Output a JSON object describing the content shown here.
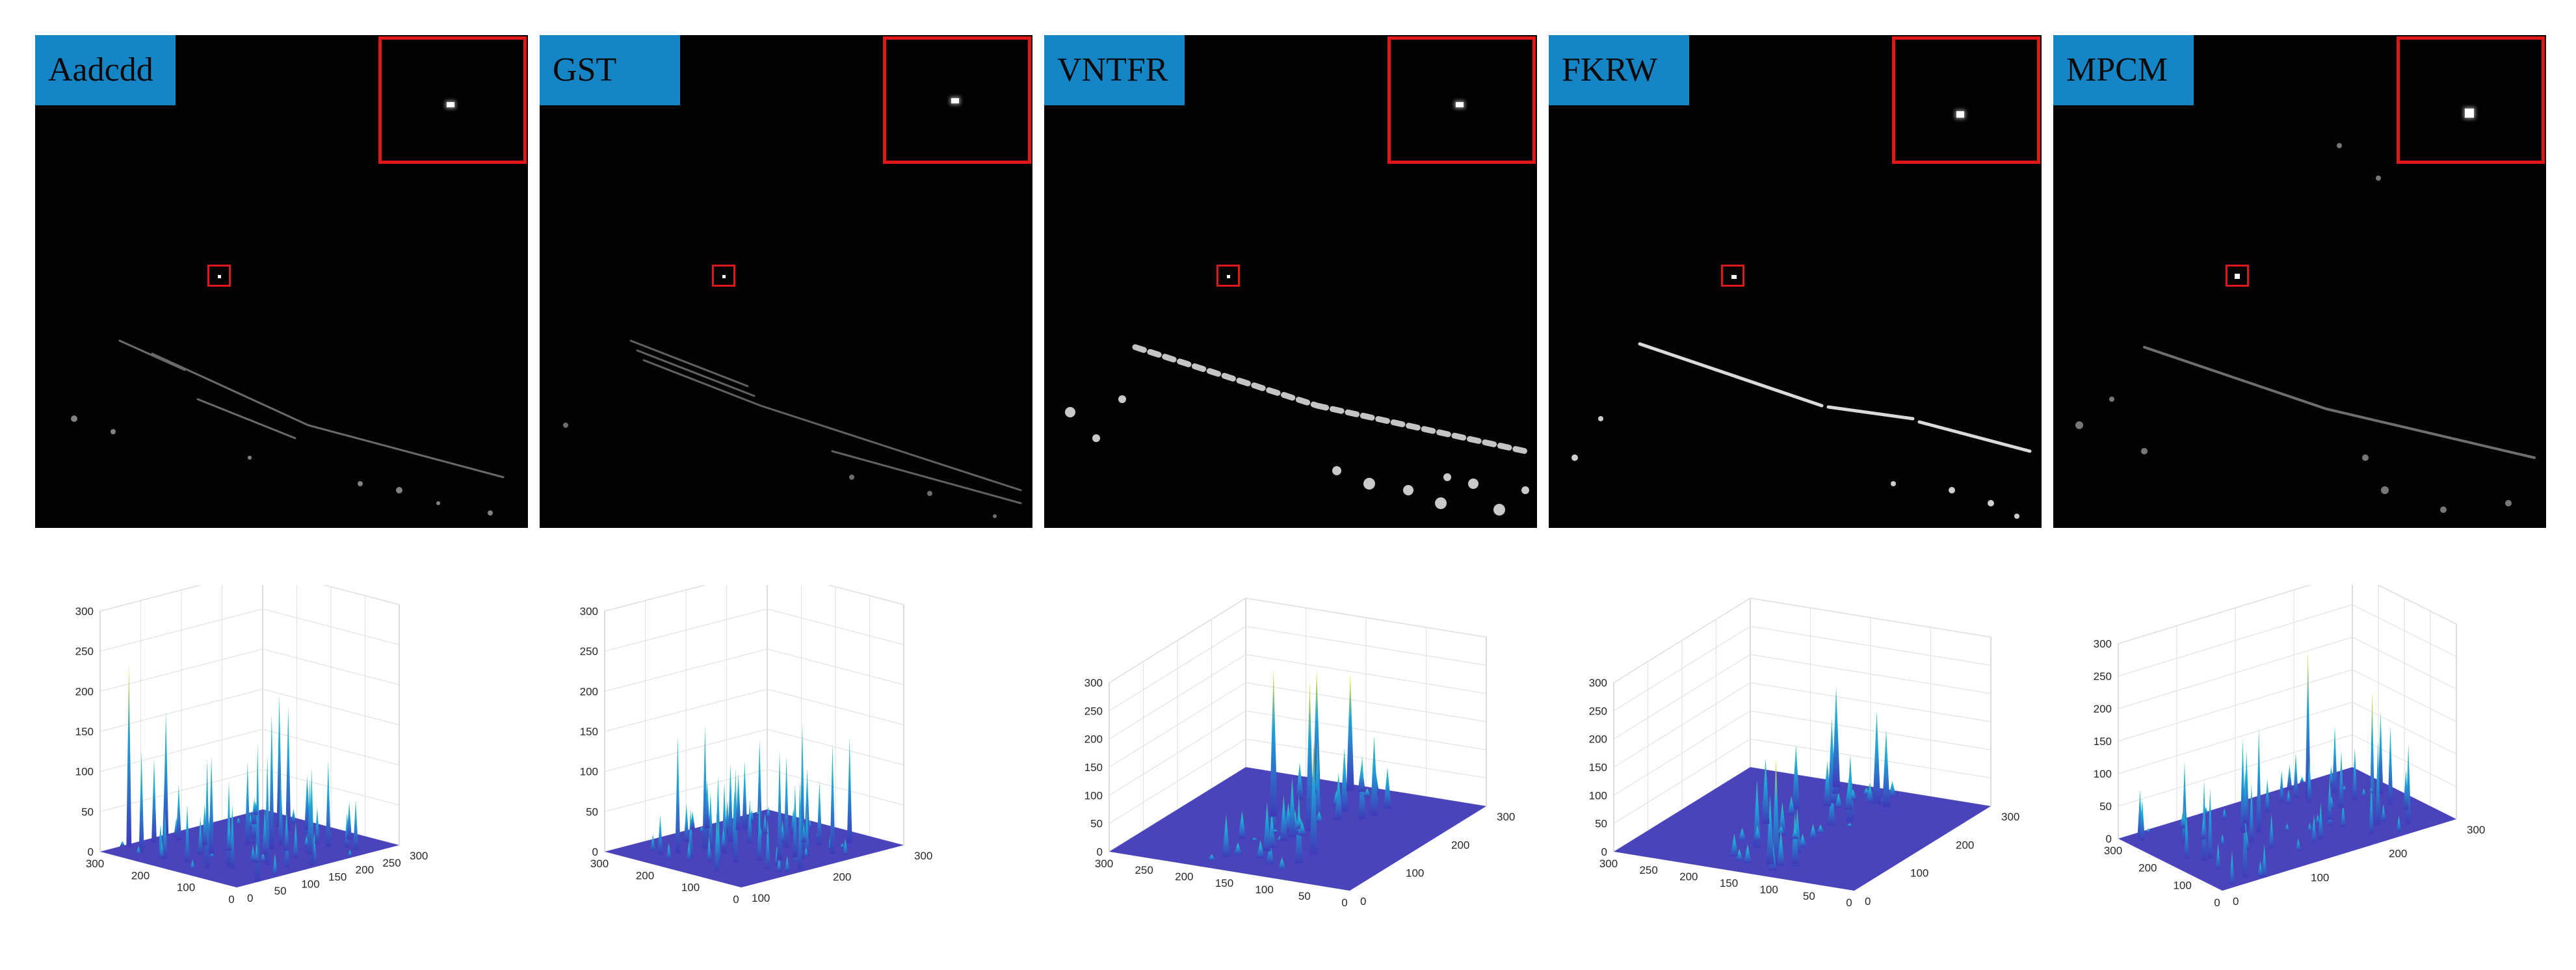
{
  "methods": [
    {
      "name": "Aadcdd",
      "z_ticks": [
        "0",
        "50",
        "100",
        "150",
        "200",
        "250",
        "300"
      ],
      "y_ticks": [
        "300",
        "200",
        "100",
        "0"
      ],
      "x_ticks": [
        "0",
        "50",
        "100",
        "150",
        "200",
        "250",
        "300"
      ]
    },
    {
      "name": "GST",
      "z_ticks": [
        "0",
        "50",
        "100",
        "150",
        "200",
        "250",
        "300"
      ],
      "y_ticks": [
        "300",
        "200",
        "100",
        "0"
      ],
      "x_ticks": [
        "100",
        "200",
        "300"
      ]
    },
    {
      "name": "VNTFR",
      "z_ticks": [
        "0",
        "50",
        "100",
        "150",
        "200",
        "250",
        "300"
      ],
      "y_ticks": [
        "300",
        "250",
        "200",
        "150",
        "100",
        "50",
        "0"
      ],
      "x_ticks": [
        "0",
        "100",
        "200",
        "300"
      ]
    },
    {
      "name": "FKRW",
      "z_ticks": [
        "0",
        "50",
        "100",
        "150",
        "200",
        "250",
        "300"
      ],
      "y_ticks": [
        "300",
        "250",
        "200",
        "150",
        "100",
        "50",
        "0"
      ],
      "x_ticks": [
        "0",
        "100",
        "200",
        "300"
      ]
    },
    {
      "name": "MPCM",
      "z_ticks": [
        "0",
        "50",
        "100",
        "150",
        "200",
        "250",
        "300"
      ],
      "y_ticks": [
        "300",
        "200",
        "100",
        "0"
      ],
      "x_ticks": [
        "0",
        "100",
        "200",
        "300"
      ]
    }
  ],
  "colors": {
    "label_bg": "#1685c6",
    "highlight": "#e01818",
    "surface_base": "#3f3ab8",
    "surface_peak": "#f5e21a"
  }
}
